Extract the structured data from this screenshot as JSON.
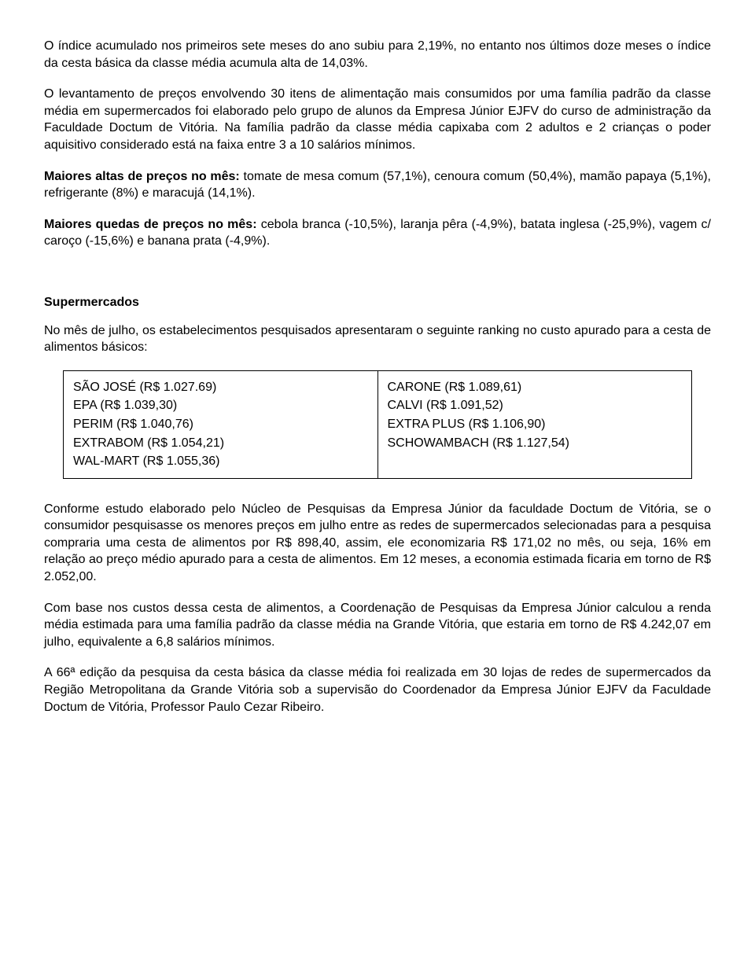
{
  "para1": "O índice acumulado nos primeiros sete meses do ano subiu para 2,19%, no entanto nos últimos doze meses o índice da cesta básica da classe média acumula alta de 14,03%.",
  "para2": "O levantamento de preços envolvendo 30 itens de alimentação mais consumidos por uma família padrão da classe média em supermercados foi elaborado pelo grupo de alunos da Empresa Júnior EJFV do curso de administração da Faculdade Doctum de Vitória. Na família padrão da classe média capixaba com 2 adultos e 2 crianças o poder aquisitivo considerado está na faixa entre 3 a 10 salários mínimos.",
  "altas_label": "Maiores altas de preços no mês:",
  "altas_text": " tomate de mesa comum (57,1%), cenoura comum (50,4%), mamão papaya (5,1%), refrigerante (8%) e maracujá (14,1%).",
  "quedas_label": "Maiores quedas de preços no mês:",
  "quedas_text": " cebola branca (-10,5%), laranja pêra (-4,9%), batata inglesa (-25,9%), vagem c/ caroço (-15,6%) e banana prata (-4,9%).",
  "supermercados_heading": "Supermercados",
  "supermercados_intro": "No mês de julho, os estabelecimentos pesquisados apresentaram o seguinte ranking no custo apurado para a cesta de alimentos básicos:",
  "ranking": {
    "left": [
      "SÃO JOSÉ (R$ 1.027.69)",
      "EPA (R$ 1.039,30)",
      "PERIM (R$ 1.040,76)",
      "EXTRABOM (R$ 1.054,21)",
      "WAL-MART (R$ 1.055,36)"
    ],
    "right": [
      "CARONE (R$ 1.089,61)",
      "CALVI (R$ 1.091,52)",
      "EXTRA PLUS (R$ 1.106,90)",
      "SCHOWAMBACH (R$ 1.127,54)"
    ]
  },
  "para5": "Conforme estudo elaborado pelo Núcleo de Pesquisas da Empresa Júnior da faculdade Doctum de Vitória, se o consumidor pesquisasse os menores preços em julho entre as redes de supermercados selecionadas para a pesquisa compraria uma cesta de alimentos por R$ 898,40, assim, ele economizaria R$ 171,02 no mês, ou seja, 16% em relação ao preço médio apurado para a cesta de alimentos. Em 12 meses, a economia estimada ficaria em torno de R$ 2.052,00.",
  "para6": "Com base nos custos dessa cesta de alimentos, a Coordenação de Pesquisas da Empresa Júnior calculou a renda média estimada para uma família padrão da classe média na Grande Vitória, que estaria em torno de R$ 4.242,07 em julho, equivalente a 6,8 salários mínimos.",
  "para7": "A 66ª edição da pesquisa da cesta básica da classe média foi realizada em 30 lojas de redes de supermercados da Região Metropolitana da Grande Vitória sob a supervisão do Coordenador da Empresa Júnior EJFV da Faculdade Doctum de Vitória, Professor Paulo Cezar Ribeiro."
}
